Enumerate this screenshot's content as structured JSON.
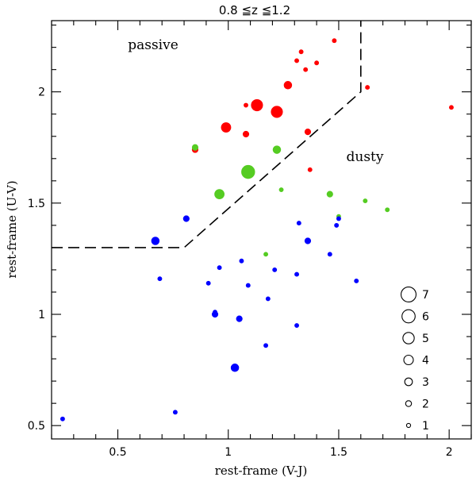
{
  "chart_data": {
    "type": "scatter",
    "title": "0.8  ≦z  ≦1.2",
    "xlabel": "rest-frame (V-J)",
    "ylabel": "rest-frame (U-V)",
    "xlim": [
      0.2,
      2.1
    ],
    "ylim": [
      0.44,
      2.32
    ],
    "x_ticks": [
      "0.5",
      "1",
      "1.5",
      "2"
    ],
    "y_ticks": [
      "0.5",
      "1",
      "1.5",
      "2"
    ],
    "region_labels": {
      "passive": "passive",
      "dusty": "dusty"
    },
    "boundary": {
      "style": "dashed",
      "points": [
        [
          0.2,
          1.3
        ],
        [
          0.8,
          1.3
        ],
        [
          1.6,
          2.0
        ],
        [
          1.6,
          2.32
        ]
      ]
    },
    "colors": {
      "red": "#ff0000",
      "green": "#55cc22",
      "blue": "#0000ff"
    },
    "size_legend": {
      "labels": [
        "7",
        "6",
        "5",
        "4",
        "3",
        "2",
        "1"
      ],
      "sizes": [
        7,
        6,
        5,
        4,
        3,
        2,
        1
      ]
    },
    "series": [
      {
        "name": "red",
        "points": [
          [
            1.13,
            1.94,
            5
          ],
          [
            1.22,
            1.91,
            5
          ],
          [
            0.99,
            1.84,
            4
          ],
          [
            1.27,
            2.03,
            3
          ],
          [
            1.08,
            1.81,
            2
          ],
          [
            1.36,
            1.82,
            2
          ],
          [
            0.85,
            1.74,
            2
          ],
          [
            1.33,
            2.18,
            1
          ],
          [
            1.31,
            2.14,
            1
          ],
          [
            1.4,
            2.13,
            1
          ],
          [
            1.48,
            2.23,
            1
          ],
          [
            1.35,
            2.1,
            1
          ],
          [
            1.63,
            2.02,
            1
          ],
          [
            1.08,
            1.94,
            1
          ],
          [
            2.01,
            1.93,
            1
          ],
          [
            1.37,
            1.65,
            1
          ]
        ]
      },
      {
        "name": "green",
        "points": [
          [
            1.09,
            1.64,
            6
          ],
          [
            0.96,
            1.54,
            4
          ],
          [
            1.22,
            1.74,
            3
          ],
          [
            0.85,
            1.75,
            2
          ],
          [
            1.46,
            1.54,
            2
          ],
          [
            1.24,
            1.56,
            1
          ],
          [
            1.62,
            1.51,
            1
          ],
          [
            1.72,
            1.47,
            1
          ],
          [
            1.5,
            1.44,
            1
          ],
          [
            1.17,
            1.27,
            1
          ]
        ]
      },
      {
        "name": "blue",
        "points": [
          [
            0.67,
            1.33,
            3
          ],
          [
            0.81,
            1.43,
            2
          ],
          [
            1.36,
            1.33,
            2
          ],
          [
            0.94,
            1.0,
            2
          ],
          [
            1.05,
            0.98,
            2
          ],
          [
            1.03,
            0.76,
            3
          ],
          [
            0.94,
            1.01,
            1
          ],
          [
            1.17,
            0.86,
            1
          ],
          [
            1.5,
            1.43,
            1
          ],
          [
            1.49,
            1.4,
            1
          ],
          [
            1.32,
            1.41,
            1
          ],
          [
            1.46,
            1.27,
            1
          ],
          [
            0.69,
            1.16,
            1
          ],
          [
            0.91,
            1.14,
            1
          ],
          [
            0.96,
            1.21,
            1
          ],
          [
            1.06,
            1.24,
            1
          ],
          [
            1.09,
            1.13,
            1
          ],
          [
            1.21,
            1.2,
            1
          ],
          [
            1.31,
            1.18,
            1
          ],
          [
            1.18,
            1.07,
            1
          ],
          [
            1.58,
            1.15,
            1
          ],
          [
            1.31,
            0.95,
            1
          ],
          [
            0.25,
            0.53,
            1
          ],
          [
            0.76,
            0.56,
            1
          ]
        ]
      }
    ]
  }
}
